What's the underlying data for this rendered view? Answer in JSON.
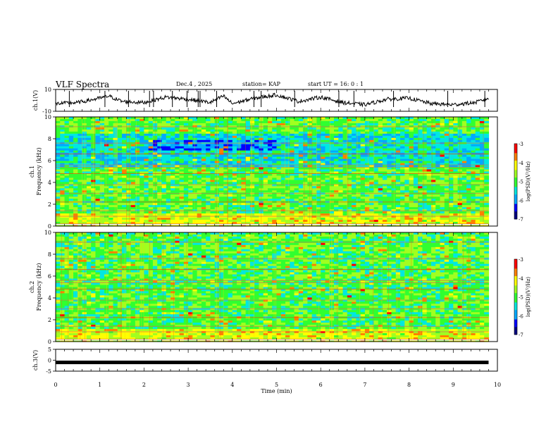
{
  "header": {
    "title": "VLF Spectra",
    "date": "Dec.4 , 2025",
    "station": "station= KAP",
    "start": "start  UT =   16: 0  : 1"
  },
  "chart_data": [
    {
      "type": "line",
      "name": "ch1-waveform",
      "ylabel": "ch.1(V)",
      "ylim": [
        -10,
        10
      ],
      "y_ticks": [
        "10",
        "-10"
      ],
      "xlim": [
        0,
        10
      ],
      "x": [
        0,
        0.5,
        1,
        1.2,
        1.5,
        2,
        2.5,
        3,
        3.5,
        3.8,
        4,
        4.5,
        5,
        5.5,
        6,
        6.5,
        7,
        7.5,
        8,
        8.5,
        9,
        9.5,
        9.8
      ],
      "values": [
        -3,
        -2,
        2,
        4,
        -1,
        -2,
        3,
        1,
        -2,
        4,
        -3,
        2,
        5,
        -1,
        3,
        -2,
        -4,
        1,
        2,
        -3,
        -4,
        -2,
        2
      ]
    },
    {
      "type": "heatmap",
      "name": "ch1-spectrogram",
      "ylabel": "ch.1\nFrequency  (kHz)",
      "ylim": [
        0,
        10
      ],
      "y_ticks": [
        "0",
        "2",
        "4",
        "6",
        "8",
        "10"
      ],
      "xlim": [
        0,
        9.8
      ],
      "colorbar": {
        "label": "log(PSD)(V²/Hz)",
        "range": [
          -7,
          -3
        ],
        "ticks": [
          "-3",
          "-4",
          "-5",
          "-6",
          "-7"
        ]
      }
    },
    {
      "type": "heatmap",
      "name": "ch2-spectrogram",
      "ylabel": "ch.2\nFrequency  (kHz)",
      "ylim": [
        0,
        10
      ],
      "y_ticks": [
        "0",
        "2",
        "4",
        "6",
        "8",
        "10"
      ],
      "xlim": [
        0,
        9.8
      ],
      "colorbar": {
        "label": "log(PSD)(V²/Hz)",
        "range": [
          -7,
          -3
        ],
        "ticks": [
          "-3",
          "-4",
          "-5",
          "-6",
          "-7"
        ]
      }
    },
    {
      "type": "line",
      "name": "ch3-waveform",
      "ylabel": "ch.3(V)",
      "ylim": [
        -5,
        5
      ],
      "y_ticks": [
        "5",
        "0",
        "-5"
      ],
      "xlim": [
        0,
        10
      ],
      "x": [
        0,
        9.8
      ],
      "values": [
        -1,
        -1
      ]
    }
  ],
  "xaxis": {
    "label": "Time  (min)",
    "ticks": [
      "0",
      "1",
      "2",
      "3",
      "4",
      "5",
      "6",
      "7",
      "8",
      "9",
      "10"
    ]
  },
  "colors": {
    "colormap": [
      "#000080",
      "#0000ff",
      "#00aaff",
      "#00e8e0",
      "#30ff30",
      "#a0ff20",
      "#ffff00",
      "#ff8000",
      "#ff0000",
      "#ffffff"
    ]
  }
}
